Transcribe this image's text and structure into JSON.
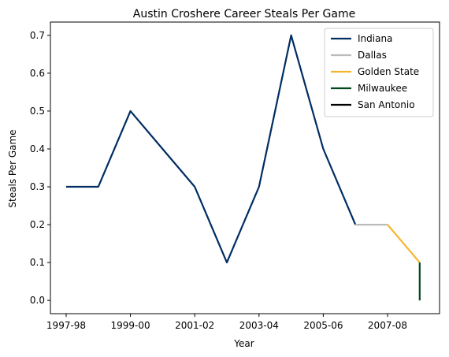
{
  "chart_data": {
    "type": "line",
    "title": "Austin Croshere Career Steals Per Game",
    "xlabel": "Year",
    "ylabel": "Steals Per Game",
    "x_tick_labels": [
      "1997-98",
      "1999-00",
      "2001-02",
      "2003-04",
      "2005-06",
      "2007-08"
    ],
    "y_ticks": [
      0.0,
      0.1,
      0.2,
      0.3,
      0.4,
      0.5,
      0.6,
      0.7
    ],
    "y_tick_labels": [
      "0.0",
      "0.1",
      "0.2",
      "0.3",
      "0.4",
      "0.5",
      "0.6",
      "0.7"
    ],
    "ylim": [
      -0.035,
      0.735
    ],
    "seasons": [
      "1997-98",
      "1998-99",
      "1999-00",
      "2000-01",
      "2001-02",
      "2002-03",
      "2003-04",
      "2004-05",
      "2005-06",
      "2006-07",
      "2007-08",
      "2008-09"
    ],
    "legend_position": "top-right",
    "grid": false,
    "series": [
      {
        "name": "Indiana",
        "color": "#002D62",
        "x": [
          "1997-98",
          "1998-99",
          "1999-00",
          "2000-01",
          "2001-02",
          "2002-03",
          "2003-04",
          "2004-05",
          "2005-06",
          "2006-07"
        ],
        "values": [
          0.3,
          0.3,
          0.5,
          0.4,
          0.3,
          0.1,
          0.3,
          0.7,
          0.4,
          0.2
        ]
      },
      {
        "name": "Dallas",
        "color": "#BBBBBB",
        "x": [
          "2006-07",
          "2007-08"
        ],
        "values": [
          0.2,
          0.2
        ]
      },
      {
        "name": "Golden State",
        "color": "#F6B52C",
        "x": [
          "2007-08",
          "2008-09"
        ],
        "values": [
          0.2,
          0.1
        ]
      },
      {
        "name": "Milwaukee",
        "color": "#00471B",
        "x": [
          "2008-09",
          "2008-09"
        ],
        "values": [
          0.1,
          0.0
        ]
      },
      {
        "name": "San Antonio",
        "color": "#000000",
        "x": [],
        "values": []
      }
    ]
  }
}
